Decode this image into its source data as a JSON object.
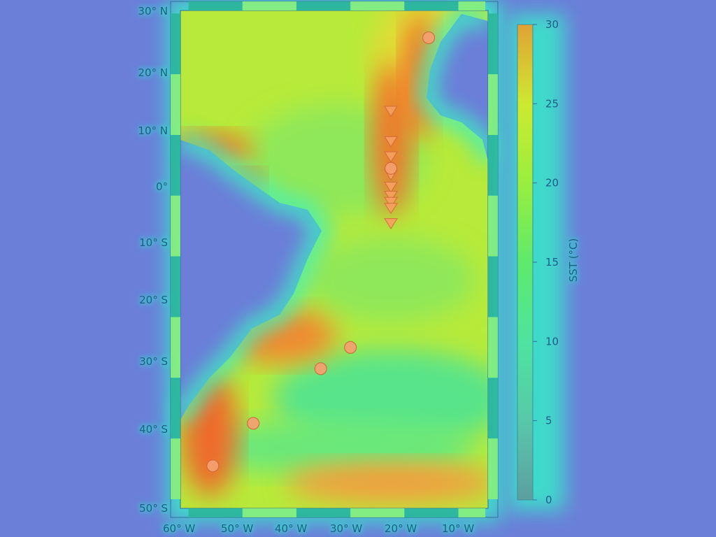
{
  "map": {
    "lat_labels": [
      "30° N",
      "20° N",
      "10° N",
      "0°",
      "10° S",
      "20° S",
      "30° S",
      "40° S",
      "50° S"
    ],
    "lon_labels": [
      "60° W",
      "50° W",
      "40° W",
      "30° W",
      "20° W",
      "10° W"
    ]
  },
  "colorbar": {
    "title": "SST (°C)",
    "ticks": [
      "30",
      "25",
      "20",
      "15",
      "10",
      "5",
      "0"
    ],
    "range": [
      0,
      30
    ],
    "colormap": [
      "#5c9fa0",
      "#57d6b2",
      "#4ce37a",
      "#96ea38",
      "#d7ec2e",
      "#f0a02e",
      "#f45c28"
    ]
  },
  "markers": {
    "circles": [
      {
        "lon": -15.5,
        "lat": 26.0
      },
      {
        "lon": -22.5,
        "lat": 4.5
      },
      {
        "lon": -30.0,
        "lat": -25.0
      },
      {
        "lon": -35.5,
        "lat": -28.5
      },
      {
        "lon": -48.0,
        "lat": -37.5
      },
      {
        "lon": -55.5,
        "lat": -44.5
      }
    ],
    "triangles": [
      {
        "lon": -22.5,
        "lat": 14.0
      },
      {
        "lon": -22.5,
        "lat": 9.0
      },
      {
        "lon": -22.5,
        "lat": 6.5
      },
      {
        "lon": -22.5,
        "lat": 3.5
      },
      {
        "lon": -22.5,
        "lat": 1.5
      },
      {
        "lon": -22.5,
        "lat": 0.0
      },
      {
        "lon": -22.5,
        "lat": -1.0
      },
      {
        "lon": -22.5,
        "lat": -2.0
      },
      {
        "lon": -22.5,
        "lat": -4.5
      }
    ]
  }
}
